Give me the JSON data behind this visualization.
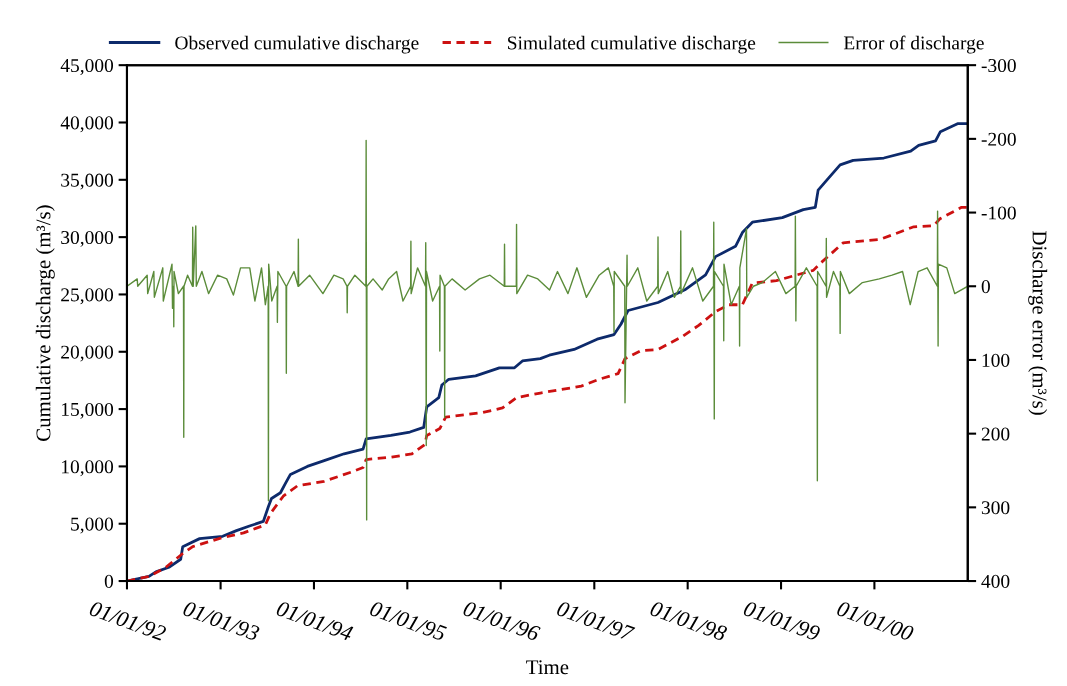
{
  "chart_data": {
    "type": "line",
    "xlabel": "Time",
    "ylabel": "Cumulative discharge (m³/s)",
    "y2label": "Discharge error (m³/s)",
    "xlim": [
      "1992-01-01",
      "2000-12-31"
    ],
    "xticks": [
      {
        "value": "1992-01-01",
        "label": "01/01/92"
      },
      {
        "value": "1993-01-01",
        "label": "01/01/93"
      },
      {
        "value": "1994-01-01",
        "label": "01/01/94"
      },
      {
        "value": "1995-01-01",
        "label": "01/01/95"
      },
      {
        "value": "1996-01-01",
        "label": "01/01/96"
      },
      {
        "value": "1997-01-01",
        "label": "01/01/97"
      },
      {
        "value": "1998-01-01",
        "label": "01/01/98"
      },
      {
        "value": "1999-01-01",
        "label": "01/01/99"
      },
      {
        "value": "2000-01-01",
        "label": "01/01/00"
      }
    ],
    "ylim": [
      0,
      45000
    ],
    "yticks": [
      0,
      {
        "value": 5000,
        "label": "5,000"
      },
      {
        "value": 10000,
        "label": "10,000"
      },
      {
        "value": 15000,
        "label": "15,000"
      },
      {
        "value": 20000,
        "label": "20,000"
      },
      {
        "value": 25000,
        "label": "25,000"
      },
      {
        "value": 30000,
        "label": "30,000"
      },
      {
        "value": 35000,
        "label": "35,000"
      },
      {
        "value": 40000,
        "label": "40,000"
      },
      {
        "value": 45000,
        "label": "45,000"
      }
    ],
    "y2lim": [
      400,
      -300
    ],
    "y2ticks": [
      -300,
      -200,
      -100,
      0,
      100,
      200,
      300,
      400
    ],
    "grid": false,
    "legend": "top",
    "marker": "none",
    "series": [
      {
        "name": "Observed cumulative discharge",
        "color": "#0d2a6b",
        "line_style": "solid",
        "x": [
          "1992-01-01",
          "1992-03-27",
          "1992-04-23",
          "1992-06-13",
          "1992-07-29",
          "1992-08-06",
          "1992-10-11",
          "1993-01-09",
          "1993-03-04",
          "1993-04-24",
          "1993-06-17",
          "1993-07-07",
          "1993-07-19",
          "1993-08-23",
          "1993-09-11",
          "1993-10-01",
          "1993-12-06",
          "1994-02-10",
          "1994-04-29",
          "1994-07-12",
          "1994-07-24",
          "1994-10-29",
          "1995-01-11",
          "1995-03-06",
          "1995-03-18",
          "1995-05-04",
          "1995-05-16",
          "1995-06-12",
          "1995-09-25",
          "1995-12-27",
          "1996-02-24",
          "1996-03-26",
          "1996-06-04",
          "1996-07-09",
          "1996-10-14",
          "1997-01-12",
          "1997-03-19",
          "1997-04-15",
          "1997-05-13",
          "1997-09-07",
          "1997-12-21",
          "1998-03-12",
          "1998-04-20",
          "1998-07-07",
          "1998-08-03",
          "1998-09-11",
          "1999-01-06",
          "1999-03-29",
          "1999-05-15",
          "1999-05-26",
          "1999-07-04",
          "1999-08-20",
          "1999-10-10",
          "2000-02-07",
          "2000-05-22",
          "2000-06-22",
          "2000-08-27",
          "2000-09-15",
          "2000-11-21",
          "2000-12-31"
        ],
        "values": [
          0,
          400,
          800,
          1200,
          1900,
          3000,
          3700,
          3900,
          4400,
          4800,
          5200,
          6500,
          7200,
          7700,
          8500,
          9300,
          10000,
          10500,
          11100,
          11500,
          12400,
          12700,
          13000,
          13400,
          15200,
          16000,
          17100,
          17600,
          17900,
          18600,
          18600,
          19200,
          19400,
          19700,
          20200,
          21100,
          21500,
          22400,
          23600,
          24300,
          25400,
          26700,
          28300,
          29200,
          30400,
          31300,
          31700,
          32400,
          32600,
          34100,
          35100,
          36300,
          36700,
          36900,
          37500,
          38000,
          38400,
          39200,
          39900,
          39900
        ]
      },
      {
        "name": "Simulated cumulative discharge",
        "color": "#cc1111",
        "line_style": "dashed",
        "x": [
          "1992-01-01",
          "1992-03-27",
          "1992-06-01",
          "1992-08-06",
          "1992-09-14",
          "1993-01-09",
          "1993-04-01",
          "1993-06-25",
          "1993-07-15",
          "1993-09-03",
          "1993-10-28",
          "1994-02-10",
          "1994-05-26",
          "1994-07-12",
          "1994-07-24",
          "1994-10-29",
          "1995-01-19",
          "1995-03-10",
          "1995-03-18",
          "1995-05-08",
          "1995-05-31",
          "1995-10-22",
          "1996-01-08",
          "1996-03-03",
          "1996-06-04",
          "1996-11-11",
          "1997-01-20",
          "1997-04-04",
          "1997-05-01",
          "1997-07-02",
          "1997-09-07",
          "1997-12-09",
          "1998-02-13",
          "1998-04-20",
          "1998-06-10",
          "1998-08-03",
          "1998-09-11",
          "1998-12-14",
          "1999-05-07",
          "1999-06-03",
          "1999-09-01",
          "2000-01-23",
          "2000-06-03",
          "2000-08-20",
          "2000-09-13",
          "2000-12-07",
          "2000-12-31"
        ],
        "values": [
          0,
          400,
          1200,
          2400,
          3000,
          3800,
          4200,
          4900,
          5900,
          7400,
          8300,
          8700,
          9500,
          9900,
          10600,
          10800,
          11100,
          11900,
          12700,
          13300,
          14300,
          14700,
          15100,
          16000,
          16400,
          17000,
          17600,
          18100,
          19400,
          20100,
          20200,
          21300,
          22300,
          23500,
          24100,
          24100,
          26000,
          26200,
          27100,
          27700,
          29500,
          29800,
          30900,
          31000,
          31600,
          32600,
          32600
        ]
      },
      {
        "name": "Error of discharge",
        "color": "#5b8c3a",
        "line_style": "solid",
        "axis": "y2",
        "x": [
          "1992-01-01",
          "1992-02-10",
          "1992-02-12",
          "1992-03-20",
          "1992-03-22",
          "1992-04-15",
          "1992-04-17",
          "1992-05-20",
          "1992-05-22",
          "1992-06-25",
          "1992-06-27",
          "1992-07-01",
          "1992-07-02",
          "1992-07-03",
          "1992-07-20",
          "1992-08-09",
          "1992-08-10",
          "1992-08-11",
          "1992-08-25",
          "1992-09-13",
          "1992-09-14",
          "1992-09-16",
          "1992-09-26",
          "1992-09-28",
          "1992-10-20",
          "1992-11-15",
          "1992-12-20",
          "1993-01-25",
          "1993-02-20",
          "1993-03-20",
          "1993-04-25",
          "1993-05-15",
          "1993-06-10",
          "1993-06-25",
          "1993-07-06",
          "1993-07-07",
          "1993-07-08",
          "1993-07-20",
          "1993-08-10",
          "1993-08-11",
          "1993-08-13",
          "1993-09-14",
          "1993-09-15",
          "1993-09-16",
          "1993-10-15",
          "1993-10-31",
          "1993-11-01",
          "1993-11-02",
          "1993-12-15",
          "1994-02-05",
          "1994-03-20",
          "1994-04-25",
          "1994-05-10",
          "1994-05-11",
          "1994-05-12",
          "1994-06-10",
          "1994-07-23",
          "1994-07-24",
          "1994-07-26",
          "1994-07-27",
          "1994-08-20",
          "1994-09-25",
          "1994-10-20",
          "1994-11-20",
          "1994-12-15",
          "1995-01-14",
          "1995-01-15",
          "1995-01-16",
          "1995-02-10",
          "1995-03-13",
          "1995-03-14",
          "1995-03-16",
          "1995-03-17",
          "1995-04-10",
          "1995-05-07",
          "1995-05-08",
          "1995-05-09",
          "1995-05-26",
          "1995-05-27",
          "1995-05-28",
          "1995-06-25",
          "1995-08-15",
          "1995-10-10",
          "1995-11-20",
          "1996-01-15",
          "1996-01-16",
          "1996-01-17",
          "1996-03-02",
          "1996-03-03",
          "1996-03-04",
          "1996-04-15",
          "1996-05-25",
          "1996-07-10",
          "1996-08-10",
          "1996-09-20",
          "1996-10-25",
          "1996-12-01",
          "1997-01-20",
          "1997-02-25",
          "1997-03-18",
          "1997-03-19",
          "1997-03-20",
          "1997-04-30",
          "1997-05-01",
          "1997-05-09",
          "1997-05-10",
          "1997-06-20",
          "1997-07-25",
          "1997-09-06",
          "1997-09-07",
          "1997-09-08",
          "1997-10-15",
          "1997-11-10",
          "1997-12-04",
          "1997-12-05",
          "1997-12-06",
          "1998-01-20",
          "1998-03-01",
          "1998-04-12",
          "1998-04-13",
          "1998-04-15",
          "1998-04-16",
          "1998-05-21",
          "1998-05-22",
          "1998-05-23",
          "1998-06-20",
          "1998-07-22",
          "1998-07-23",
          "1998-07-24",
          "1998-08-19",
          "1998-08-20",
          "1998-09-15",
          "1998-10-20",
          "1998-12-10",
          "1999-01-20",
          "1999-02-25",
          "1999-02-26",
          "1999-02-28",
          "1999-03-01",
          "1999-04-10",
          "1999-05-22",
          "1999-05-23",
          "1999-05-24",
          "1999-06-26",
          "1999-06-27",
          "1999-06-28",
          "1999-07-25",
          "1999-08-19",
          "1999-08-20",
          "1999-08-21",
          "1999-09-25",
          "1999-11-15",
          "2000-01-20",
          "2000-03-10",
          "2000-04-20",
          "2000-05-20",
          "2000-06-20",
          "2000-07-25",
          "2000-09-03",
          "2000-09-04",
          "2000-09-06",
          "2000-09-07",
          "2000-10-10",
          "2000-11-10",
          "2000-12-31"
        ],
        "values": [
          0,
          -10,
          0,
          -15,
          10,
          -20,
          15,
          -25,
          20,
          -30,
          30,
          0,
          55,
          -20,
          10,
          0,
          205,
          0,
          -15,
          0,
          -80,
          0,
          -82,
          0,
          -20,
          10,
          -15,
          -10,
          12,
          -25,
          -25,
          20,
          -25,
          25,
          0,
          291,
          -30,
          20,
          0,
          49,
          -20,
          0,
          118,
          0,
          -20,
          0,
          -64,
          0,
          -15,
          10,
          -15,
          -10,
          0,
          36,
          0,
          -15,
          0,
          -198,
          317,
          0,
          -10,
          5,
          -10,
          -20,
          20,
          0,
          -61,
          10,
          -25,
          0,
          -59,
          216,
          -20,
          20,
          0,
          88,
          -15,
          0,
          178,
          0,
          -10,
          5,
          -10,
          -15,
          0,
          -57,
          0,
          0,
          -84,
          10,
          -15,
          -10,
          5,
          -20,
          10,
          -25,
          15,
          -15,
          -25,
          0,
          62,
          -20,
          0,
          158,
          -42,
          0,
          -25,
          20,
          0,
          -67,
          10,
          -20,
          15,
          0,
          -75,
          10,
          -25,
          20,
          0,
          -87,
          180,
          -20,
          0,
          74,
          -30,
          25,
          0,
          81,
          -25,
          -78,
          15,
          0,
          -5,
          -20,
          10,
          0,
          -95,
          47,
          0,
          -25,
          0,
          264,
          -20,
          0,
          -65,
          15,
          -20,
          0,
          64,
          -20,
          10,
          -5,
          -10,
          -15,
          -20,
          25,
          -20,
          -25,
          0,
          -102,
          81,
          -30,
          -25,
          10,
          0
        ]
      }
    ]
  }
}
